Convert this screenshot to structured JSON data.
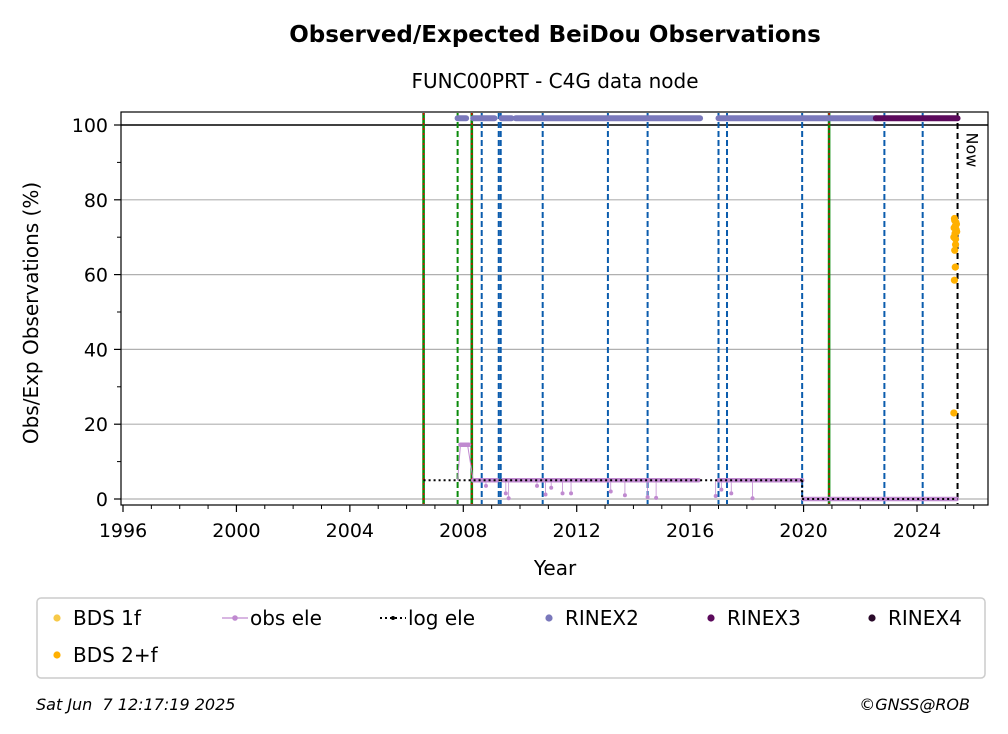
{
  "chart_data": {
    "type": "scatter",
    "title": "Observed/Expected BeiDou Observations",
    "subtitle": "FUNC00PRT - C4G data node",
    "xlabel": "Year",
    "ylabel": "Obs/Exp Observations (%)",
    "xlim": [
      1996,
      2026.3
    ],
    "ylim": [
      -1,
      103.5
    ],
    "grid": "horizontal",
    "x_ticks": [
      "1996",
      "2000",
      "2004",
      "2008",
      "2012",
      "2016",
      "2020",
      "2024"
    ],
    "y_ticks": [
      "0",
      "20",
      "40",
      "60",
      "80",
      "100"
    ],
    "now_label": "Now",
    "now_year": 2025.43,
    "legend": {
      "placement": "below",
      "entries": [
        {
          "label": "BDS 1f",
          "color": "#f7c948",
          "marker": "dot"
        },
        {
          "label": "obs ele",
          "color": "#c08ad0",
          "marker": "dot-line"
        },
        {
          "label": "log ele",
          "color": "#000000",
          "marker": "dotted-line"
        },
        {
          "label": "RINEX2",
          "color": "#7a78bb",
          "marker": "dot"
        },
        {
          "label": "RINEX3",
          "color": "#5c0a5c",
          "marker": "dot"
        },
        {
          "label": "RINEX4",
          "color": "#2a0a2a",
          "marker": "dot"
        },
        {
          "label": "BDS 2+f",
          "color": "#ffb000",
          "marker": "dot"
        }
      ]
    },
    "vlines_green_red": [
      2006.6,
      2008.3,
      2020.9
    ],
    "vlines_green": [
      2007.8
    ],
    "vlines_blue": [
      2008.65,
      2009.25,
      2009.32,
      2010.8,
      2013.1,
      2014.5,
      2017.0,
      2017.3,
      2019.95,
      2022.85,
      2024.2
    ],
    "series": [
      {
        "name": "RINEX2",
        "color": "#7a78bb",
        "y": 101.8,
        "segments": [
          [
            2007.8,
            2008.1
          ],
          [
            2008.35,
            2009.1
          ],
          [
            2009.35,
            2009.7
          ],
          [
            2009.85,
            2016.35
          ],
          [
            2017.0,
            2022.55
          ]
        ]
      },
      {
        "name": "RINEX3",
        "color": "#5c0a5c",
        "y": 101.8,
        "segments": [
          [
            2022.55,
            2025.43
          ]
        ]
      },
      {
        "name": "log ele",
        "color": "#000000",
        "steps": [
          [
            2006.6,
            2009.3,
            5
          ],
          [
            2009.3,
            2019.95,
            5
          ],
          [
            2019.95,
            2025.43,
            0
          ]
        ]
      },
      {
        "name": "obs ele",
        "color": "#c08ad0",
        "base": [
          [
            2007.9,
            2008.2,
            14.5
          ],
          [
            2008.35,
            2009.2,
            5
          ],
          [
            2009.4,
            2016.3,
            5
          ],
          [
            2017.0,
            2019.95,
            5
          ],
          [
            2020.0,
            2025.4,
            0
          ]
        ],
        "drops": [
          [
            2008.8,
            3.5
          ],
          [
            2009.5,
            1.5
          ],
          [
            2009.6,
            0.2
          ],
          [
            2010.6,
            3.5
          ],
          [
            2010.9,
            1.2
          ],
          [
            2011.1,
            3.0
          ],
          [
            2011.5,
            1.5
          ],
          [
            2011.8,
            1.5
          ],
          [
            2012.1,
            5.0
          ],
          [
            2013.2,
            2.0
          ],
          [
            2013.7,
            1.0
          ],
          [
            2014.5,
            0.5
          ],
          [
            2014.8,
            0.3
          ],
          [
            2016.9,
            0.8
          ],
          [
            2017.1,
            2.5
          ],
          [
            2017.45,
            1.5
          ],
          [
            2018.2,
            0.2
          ]
        ]
      },
      {
        "name": "BDS 2+f",
        "color": "#ffb000",
        "points": [
          [
            2025.3,
            23
          ],
          [
            2025.32,
            58.5
          ],
          [
            2025.35,
            62
          ],
          [
            2025.33,
            66.5
          ],
          [
            2025.36,
            68
          ],
          [
            2025.3,
            70
          ],
          [
            2025.34,
            71
          ],
          [
            2025.38,
            72
          ],
          [
            2025.31,
            72.5
          ],
          [
            2025.35,
            73
          ],
          [
            2025.37,
            74
          ],
          [
            2025.33,
            74.5
          ],
          [
            2025.39,
            73.5
          ],
          [
            2025.32,
            75
          ],
          [
            2025.36,
            69.5
          ],
          [
            2025.4,
            71.5
          ]
        ]
      }
    ]
  },
  "footer": {
    "timestamp": "Sat Jun  7 12:17:19 2025",
    "credit": "©GNSS@ROB"
  }
}
